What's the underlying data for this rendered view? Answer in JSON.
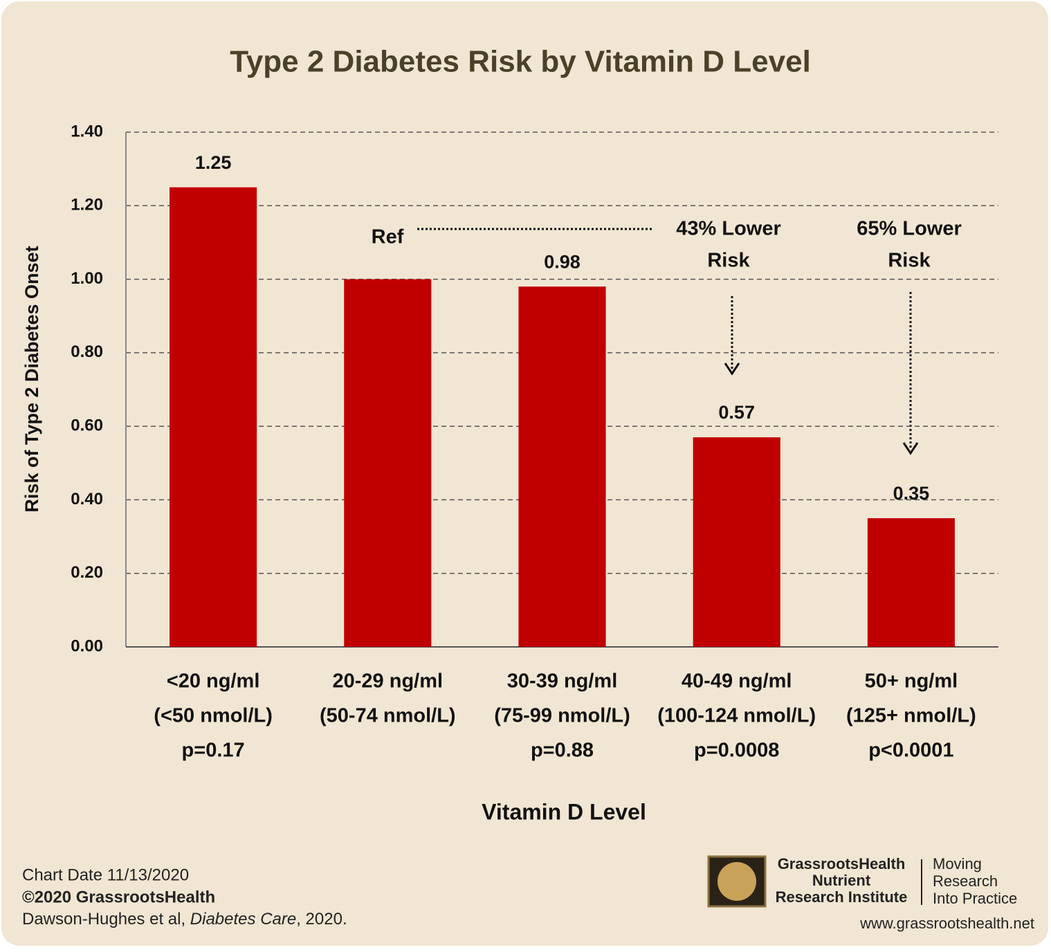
{
  "chart_data": {
    "type": "bar",
    "title": "Type 2 Diabetes Risk by Vitamin D Level",
    "x_label": "Vitamin D Level",
    "y_label": "Risk of Type 2 Diabetes Onset",
    "categories": [
      [
        "<20 ng/ml",
        "(<50 nmol/L)",
        "p=0.17"
      ],
      [
        "20-29 ng/ml",
        "(50-74 nmol/L)"
      ],
      [
        "30-39 ng/ml",
        "(75-99 nmol/L)",
        "p=0.88"
      ],
      [
        "40-49 ng/ml",
        "(100-124 nmol/L)",
        "p=0.0008"
      ],
      [
        "50+ ng/ml",
        "(125+ nmol/L)",
        "p<0.0001"
      ]
    ],
    "values": [
      1.25,
      1.0,
      0.98,
      0.57,
      0.35
    ],
    "value_labels": [
      "1.25",
      null,
      "0.98",
      "0.57",
      "0.35"
    ],
    "color": "#c00000",
    "ylim": [
      0,
      1.4
    ],
    "yticks": [
      {
        "value": 0,
        "label": "0.00"
      },
      {
        "value": 0.2,
        "label": "0.20"
      },
      {
        "value": 0.4,
        "label": "0.40"
      },
      {
        "value": 0.6,
        "label": "0.60"
      },
      {
        "value": 0.8,
        "label": "0.80"
      },
      {
        "value": 1.0,
        "label": "1.00"
      },
      {
        "value": 1.2,
        "label": "1.20"
      },
      {
        "value": 1.4,
        "label": "1.40"
      }
    ],
    "grid": true,
    "annotations": [
      {
        "text": [
          "Ref"
        ]
      },
      {
        "text": [
          "43% Lower",
          "Risk"
        ]
      },
      {
        "text": [
          "65% Lower",
          "Risk"
        ]
      }
    ]
  },
  "footer": {
    "chart_date": "Chart Date 11/13/2020",
    "copyright": "©2020 GrassrootsHealth",
    "citation": [
      "Dawson-Hughes et al, ",
      "Diabetes Care",
      ", 2020."
    ],
    "logo": [
      "GrassrootsHealth",
      "Nutrient",
      "Research Institute"
    ],
    "tagline": [
      "Moving",
      "Research",
      "Into Practice"
    ],
    "url": "www.grassrootshealth.net"
  }
}
